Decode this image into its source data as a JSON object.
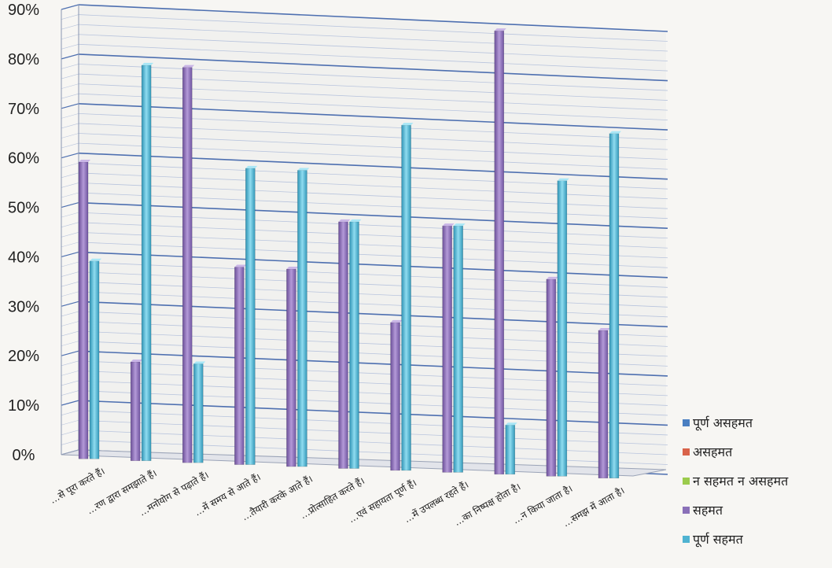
{
  "chart_data": {
    "type": "bar",
    "subtype": "3d-clustered-column",
    "title": "",
    "xlabel": "",
    "ylabel": "",
    "ylim": [
      0,
      90
    ],
    "y_tick_labels": [
      "0%",
      "10%",
      "20%",
      "30%",
      "40%",
      "50%",
      "60%",
      "70%",
      "80%",
      "90%"
    ],
    "grid": true,
    "legend_position": "right",
    "categories": [
      "…से पूरा करते हैं।",
      "…रण द्वारा समझाते हैं।",
      "…मनोयोग से पढ़ाते हैं।",
      "…में समय से आते हैं।",
      "…तैयारी करके आते हैं।",
      "…प्रोत्साहित करते हैं।",
      "…एवं सहायता पूर्ण हैं।",
      "…में उपलब्ध रहते हैं।",
      "…का निष्पक्ष होता है।",
      "…न किया जाता है।",
      "…समझ में आता है।"
    ],
    "series": [
      {
        "name": "पूर्ण असहमत",
        "color": "#4a7fc1",
        "values": [
          0,
          0,
          0,
          0,
          0,
          0,
          0,
          0,
          0,
          0,
          0
        ]
      },
      {
        "name": "असहमत",
        "color": "#d9634a",
        "values": [
          0,
          0,
          0,
          0,
          0,
          0,
          0,
          0,
          0,
          0,
          0
        ]
      },
      {
        "name": "न सहमत न असहमत",
        "color": "#9bcb4c",
        "values": [
          0,
          0,
          0,
          0,
          0,
          0,
          0,
          0,
          0,
          0,
          0
        ]
      },
      {
        "name": "सहमत",
        "color": "#8a70b8",
        "values": [
          60,
          20,
          80,
          40,
          40,
          50,
          30,
          50,
          90,
          40,
          30
        ]
      },
      {
        "name": "पूर्ण सहमत",
        "color": "#4fb3d1",
        "values": [
          40,
          80,
          20,
          60,
          60,
          50,
          70,
          50,
          10,
          60,
          70
        ]
      }
    ]
  }
}
